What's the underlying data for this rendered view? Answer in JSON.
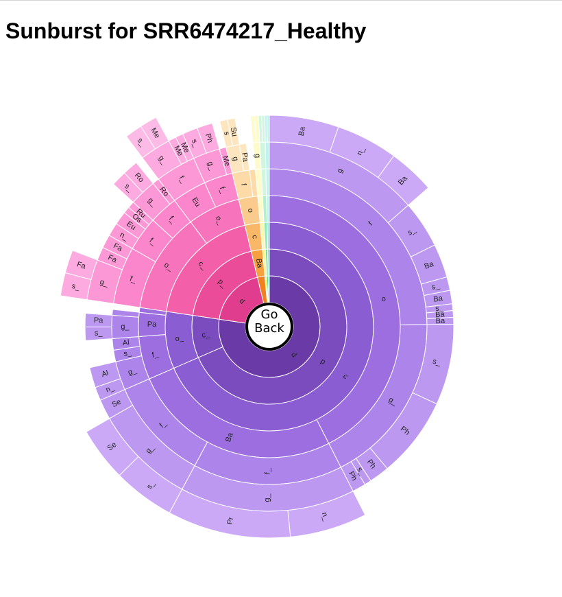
{
  "page": {
    "title": "Sunburst for SRR6474217_Healthy"
  },
  "center_button": {
    "line1": "Go",
    "line2": "Back"
  },
  "colors": {
    "purple": [
      "#6a3aa6",
      "#7a4cbd",
      "#8b5dd3",
      "#9c6ee0",
      "#ad85ea",
      "#bd98f1",
      "#cba9f6",
      "#d8baf9",
      "#e4c9fb",
      "#eed9fd"
    ],
    "pink": [
      "#e03d8e",
      "#ea4c9a",
      "#f35fa8",
      "#f773bb",
      "#fb86cb",
      "#fd98d7",
      "#fcaae0",
      "#fcbbe7",
      "#fdcaee",
      "#feddf4"
    ],
    "orange": [
      "#f08020",
      "#f6a040",
      "#f9b768",
      "#fbcb8e",
      "#fcdba8",
      "#fde6bf"
    ],
    "yellow": [
      "#f6f06a",
      "#f9f48e",
      "#fbf7b0",
      "#fdfacc"
    ],
    "green": [
      "#4dd88a",
      "#6ee0a0",
      "#92e9b8",
      "#b4f0cd",
      "#d0f6e0"
    ],
    "cyan": [
      "#45d8c8",
      "#6fe3d6",
      "#9aece3",
      "#c0f3ee"
    ]
  },
  "chart_data": {
    "type": "sunburst",
    "title": "Sunburst for SRR6474217_Healthy",
    "rings": [
      "d",
      "p",
      "c",
      "o",
      "f",
      "g",
      "s"
    ],
    "root": {
      "name": "",
      "children": [
        {
          "name": "d",
          "color": "purple",
          "children": [
            {
              "name": "p",
              "children": [
                {
                  "name": "c",
                  "children": [
                    {
                      "name": "o",
                      "children": [
                        {
                          "name": "f",
                          "children": [
                            {
                              "name": "g",
                              "children": [
                                {
                                  "name": "Ba",
                                  "value": 9
                                },
                                {
                                  "name": "n_",
                                  "value": 8
                                },
                                {
                                  "name": "Ba",
                                  "value": 6
                                }
                              ]
                            },
                            {
                              "name": "s_",
                              "value": 7
                            },
                            {
                              "name": "Ba",
                              "value": 5
                            },
                            {
                              "name": "s_",
                              "value": 2
                            },
                            {
                              "name": "Ba",
                              "value": 2
                            },
                            {
                              "name": "s_",
                              "value": 1
                            },
                            {
                              "name": "Ba",
                              "value": 1
                            },
                            {
                              "name": "Ba",
                              "value": 1
                            }
                          ]
                        },
                        {
                          "name": "g_",
                          "children": [
                            {
                              "name": "s_",
                              "value": 12
                            },
                            {
                              "name": "Ph",
                              "value": 12
                            },
                            {
                              "name": "Ph",
                              "value": 3
                            },
                            {
                              "name": "s_",
                              "value": 1
                            },
                            {
                              "name": "Ph",
                              "value": 2
                            }
                          ]
                        }
                      ]
                    },
                    {
                      "name": "Ba",
                      "children": [
                        {
                          "name": "f_",
                          "children": [
                            {
                              "name": "g_",
                              "children": [
                                {
                                  "name": "n_",
                                  "value": 10
                                },
                                {
                                  "name": "Pr",
                                  "value": 16
                                }
                              ]
                            }
                          ]
                        },
                        {
                          "name": "f_",
                          "children": [
                            {
                              "name": "g_",
                              "children": [
                                {
                                  "name": "s_",
                                  "value": 8
                                },
                                {
                                  "name": "Se",
                                  "value": 7
                                }
                              ]
                            },
                            {
                              "name": "Se",
                              "value": 3
                            }
                          ]
                        }
                      ]
                    }
                  ]
                }
              ]
            },
            {
              "name": "c_",
              "children": [
                {
                  "name": "o_",
                  "children": [
                    {
                      "name": "f_",
                      "children": [
                        {
                          "name": "g_",
                          "children": [
                            {
                              "name": "n_",
                              "value": 2
                            },
                            {
                              "name": "Al",
                              "value": 3
                            }
                          ]
                        },
                        {
                          "name": "s_",
                          "value": 2
                        },
                        {
                          "name": "Al",
                          "value": 2
                        }
                      ]
                    },
                    {
                      "name": "Pa",
                      "children": [
                        {
                          "name": "g_",
                          "children": [
                            {
                              "name": "s_",
                              "value": 2
                            },
                            {
                              "name": "Pa",
                              "value": 2
                            }
                          ]
                        },
                        {
                          "name": "Pa",
                          "value": 1
                        }
                      ]
                    },
                    {
                      "name": "Ba",
                      "value": 1
                    }
                  ]
                }
              ]
            }
          ]
        },
        {
          "name": "d",
          "color": "pink",
          "children": [
            {
              "name": "p_",
              "children": [
                {
                  "name": "c_",
                  "children": [
                    {
                      "name": "o_",
                      "children": [
                        {
                          "name": "f_",
                          "children": [
                            {
                              "name": "g_",
                              "children": [
                                {
                                  "name": "s_",
                                  "value": 3
                                },
                                {
                                  "name": "Fa",
                                  "value": 3
                                }
                              ]
                            },
                            {
                              "name": "Fa",
                              "value": 2
                            },
                            {
                              "name": "Fa",
                              "value": 2
                            }
                          ]
                        },
                        {
                          "name": "f_",
                          "children": [
                            {
                              "name": "n_",
                              "value": 2
                            },
                            {
                              "name": "Eu",
                              "value": 2
                            },
                            {
                              "name": "Os",
                              "value": 1
                            },
                            {
                              "name": "Ru",
                              "value": 1
                            }
                          ]
                        },
                        {
                          "name": "f_",
                          "children": [
                            {
                              "name": "g_",
                              "children": [
                                {
                                  "name": "s_",
                                  "value": 2
                                },
                                {
                                  "name": "Ro",
                                  "value": 2
                                }
                              ]
                            },
                            {
                              "name": "Ro",
                              "value": 1
                            }
                          ]
                        }
                      ]
                    },
                    {
                      "name": "o_",
                      "children": [
                        {
                          "name": "Eu",
                          "children": [
                            {
                              "name": "f_",
                              "children": [
                                {
                                  "name": "g_",
                                  "children": [
                                    {
                                      "name": "s_",
                                      "value": 2
                                    },
                                    {
                                      "name": "Me",
                                      "value": 2
                                    }
                                  ]
                                },
                                {
                                  "name": "Me",
                                  "value": 1
                                },
                                {
                                  "name": "Me",
                                  "value": 1
                                }
                              ]
                            }
                          ]
                        },
                        {
                          "name": "f_",
                          "children": [
                            {
                              "name": "g_",
                              "children": [
                                {
                                  "name": "s_",
                                  "value": 2
                                },
                                {
                                  "name": "Ph",
                                  "value": 2
                                }
                              ]
                            },
                            {
                              "name": "Me",
                              "value": 1
                            }
                          ]
                        }
                      ]
                    }
                  ]
                }
              ]
            }
          ]
        },
        {
          "name": "d",
          "color": "orange",
          "children": [
            {
              "name": "Ba",
              "children": [
                {
                  "name": "c",
                  "children": [
                    {
                      "name": "o",
                      "children": [
                        {
                          "name": "f",
                          "children": [
                            {
                              "name": "g",
                              "children": [
                                {
                                  "name": "s",
                                  "value": 1
                                },
                                {
                                  "name": "Su",
                                  "value": 1
                                }
                              ]
                            },
                            {
                              "name": "Pa",
                              "value": 1
                            }
                          ]
                        },
                        {
                          "name": "Me",
                          "value": 1
                        }
                      ]
                    }
                  ]
                }
              ]
            }
          ]
        },
        {
          "name": "d",
          "color": "yellow",
          "children": [
            {
              "name": "p",
              "children": [
                {
                  "name": "c",
                  "children": [
                    {
                      "name": "o",
                      "children": [
                        {
                          "name": "f",
                          "children": [
                            {
                              "name": "g",
                              "children": [
                                {
                                  "name": "S",
                                  "value": 0.5
                                },
                                {
                                  "name": "Fu",
                                  "value": 0.5
                                }
                              ]
                            }
                          ]
                        }
                      ]
                    }
                  ]
                }
              ]
            }
          ]
        },
        {
          "name": "d",
          "color": "green",
          "children": [
            {
              "name": "p",
              "children": [
                {
                  "name": "c",
                  "children": [
                    {
                      "name": "o",
                      "children": [
                        {
                          "name": "f",
                          "children": [
                            {
                              "name": "g",
                              "children": [
                                {
                                  "name": "s",
                                  "value": 0.4
                                },
                                {
                                  "name": "Eu",
                                  "value": 0.4
                                }
                              ]
                            }
                          ]
                        }
                      ]
                    }
                  ]
                }
              ]
            }
          ]
        },
        {
          "name": "d",
          "color": "cyan",
          "children": [
            {
              "name": "p",
              "children": [
                {
                  "name": "c",
                  "children": [
                    {
                      "name": "o",
                      "children": [
                        {
                          "name": "f",
                          "children": [
                            {
                              "name": "g",
                              "children": [
                                {
                                  "name": "s",
                                  "value": 0.3
                                },
                                {
                                  "name": "De",
                                  "value": 0.3
                                }
                              ]
                            }
                          ]
                        }
                      ]
                    }
                  ]
                }
              ]
            }
          ]
        }
      ]
    }
  }
}
